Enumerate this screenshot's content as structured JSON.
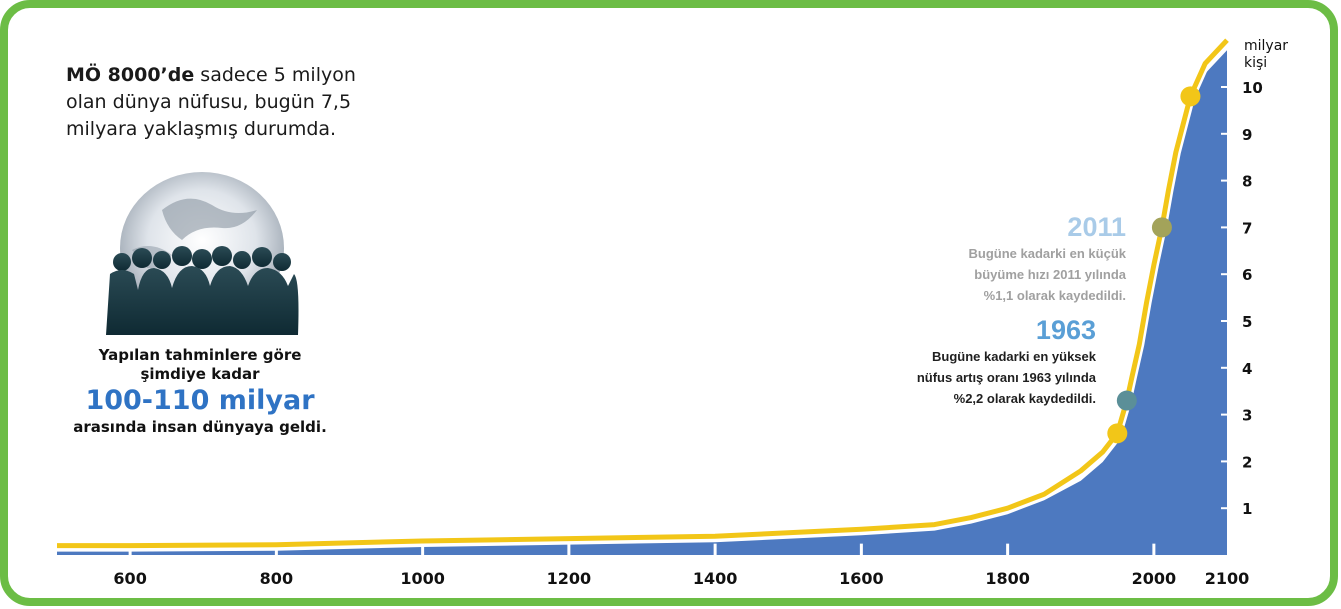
{
  "intro": {
    "bold": "MÖ 8000’de",
    "text": " sadece 5 milyon olan dünya nüfusu, bugün 7,5 milyara yaklaşmış durumda."
  },
  "history": {
    "line1": "Yapılan tahminlere göre",
    "line2": "şimdiye kadar",
    "line3": "100-110 milyar",
    "line4": "arasında insan dünyaya geldi."
  },
  "annotations": {
    "y2011": {
      "year": "2011",
      "lines": [
        "Bugüne kadarki en küçük",
        "büyüme hızı 2011 yılında",
        "%1,1 olarak kaydedildi."
      ]
    },
    "y1963": {
      "year": "1963",
      "lines": [
        "Bugüne kadarki en yüksek",
        "nüfus artış oranı 1963 yılında",
        "%2,2 olarak kaydedildi."
      ]
    }
  },
  "colors": {
    "frame": "#6cbd45",
    "area": "#4d79c0",
    "curve": "#f2c618",
    "dot_2011": "#a3a35a",
    "dot_1963": "#5b8f98"
  },
  "chart_data": {
    "type": "area",
    "ylabel": "milyar\nkişi",
    "xlim": [
      500,
      2100
    ],
    "ylim": [
      0,
      11
    ],
    "x_ticks": [
      600,
      800,
      1000,
      1200,
      1400,
      1600,
      1800,
      2000,
      2100
    ],
    "y_ticks": [
      1,
      2,
      3,
      4,
      5,
      6,
      7,
      8,
      9,
      10
    ],
    "series": [
      {
        "x": [
          500,
          600,
          800,
          1000,
          1200,
          1400,
          1600,
          1700,
          1750,
          1800,
          1850,
          1900,
          1930,
          1950,
          1963,
          1970,
          1980,
          1990,
          2000,
          2011,
          2020,
          2030,
          2050,
          2070,
          2100
        ],
        "values": [
          0.2,
          0.2,
          0.22,
          0.3,
          0.35,
          0.4,
          0.55,
          0.65,
          0.8,
          1.0,
          1.3,
          1.8,
          2.2,
          2.6,
          3.3,
          3.8,
          4.5,
          5.4,
          6.2,
          7.0,
          7.8,
          8.6,
          9.8,
          10.5,
          11.0
        ]
      }
    ],
    "highlighted_points": [
      {
        "x": 1950,
        "y": 2.6
      },
      {
        "x": 1963,
        "y": 3.3
      },
      {
        "x": 2011,
        "y": 7.0
      },
      {
        "x": 2050,
        "y": 9.8
      }
    ]
  }
}
